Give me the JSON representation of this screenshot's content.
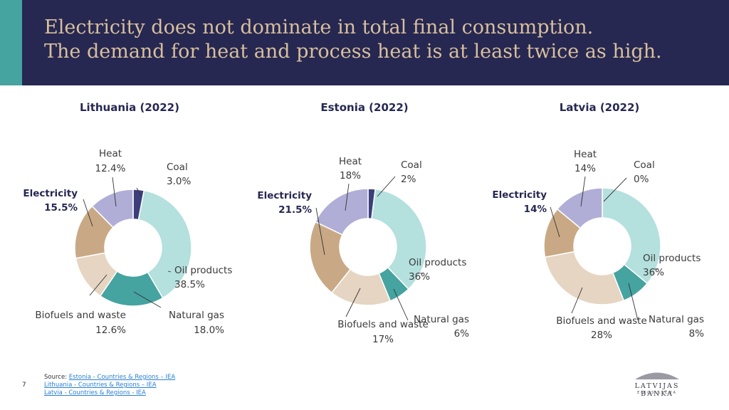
{
  "header": {
    "title_line1": "Electricity does not dominate in total final consumption.",
    "title_line2": "The demand for heat and process heat is at least twice as high."
  },
  "colors": {
    "header_bg": "#262852",
    "accent": "#45a3a0",
    "title_text": "#d9bf9c",
    "coal": "#3d3f7a",
    "oil_products": "#b4e0de",
    "natural_gas": "#45a3a0",
    "biofuels_and_waste": "#e6d5c2",
    "electricity": "#c9a985",
    "heat": "#b0aed6"
  },
  "chart_data": [
    {
      "type": "pie",
      "title": "Lithuania (2022)",
      "categories": [
        "Coal",
        "Oil products",
        "Natural gas",
        "Biofuels and waste",
        "Electricity",
        "Heat"
      ],
      "values": [
        3.0,
        38.5,
        18.0,
        12.6,
        15.5,
        12.4
      ],
      "labels": [
        "3.0%",
        "38.5%",
        "18.0%",
        "12.6%",
        "15.5%",
        "12.4%"
      ]
    },
    {
      "type": "pie",
      "title": "Estonia (2022)",
      "categories": [
        "Coal",
        "Oil products",
        "Natural gas",
        "Biofuels and waste",
        "Electricity",
        "Heat"
      ],
      "values": [
        2,
        36,
        6,
        17,
        21.5,
        18
      ],
      "labels": [
        "2%",
        "36%",
        "6%",
        "17%",
        "21.5%",
        "18%"
      ]
    },
    {
      "type": "pie",
      "title": "Latvia (2022)",
      "categories": [
        "Coal",
        "Oil products",
        "Natural gas",
        "Biofuels and waste",
        "Electricity",
        "Heat"
      ],
      "values": [
        0,
        36,
        8,
        28,
        14,
        14
      ],
      "labels": [
        "0%",
        "36%",
        "8%",
        "28%",
        "14%",
        "14%"
      ]
    }
  ],
  "footer": {
    "page_number": "7",
    "source_prefix": "Source: ",
    "source_links": [
      "Estonia - Countries & Regions – IEA",
      "Lithuania - Countries & Regions – IEA",
      "Latvia - Countries & Regions - IEA"
    ],
    "logo_name": "LATVIJAS BANKA",
    "logo_sub": "EIROSISTĒMA"
  }
}
